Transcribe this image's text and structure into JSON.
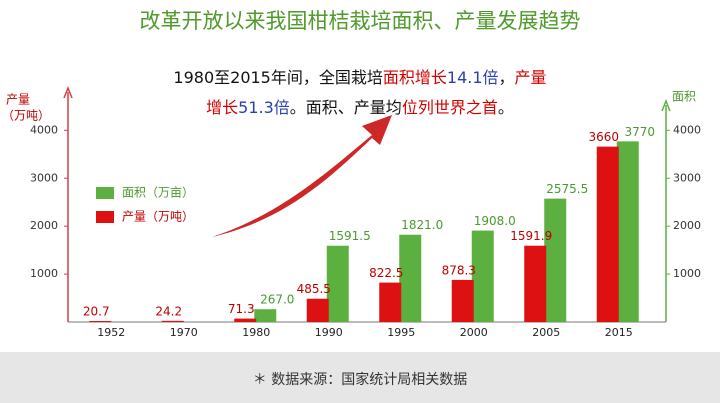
{
  "chart_data": {
    "type": "bar",
    "title": "改革开放以来我国柑桔栽培面积、产量发展趋势",
    "annotation": [
      [
        {
          "text": "1980至2015年间，全国栽培",
          "color": "#111111"
        },
        {
          "text": "面积增长",
          "color": "#d40000"
        },
        {
          "text": "14.1倍",
          "color": "#2a3fb0"
        },
        {
          "text": "，",
          "color": "#111111"
        },
        {
          "text": "产量",
          "color": "#d40000"
        }
      ],
      [
        {
          "text": "增长",
          "color": "#d40000"
        },
        {
          "text": "51.3倍",
          "color": "#2a3fb0"
        },
        {
          "text": "。面积、产量均",
          "color": "#111111"
        },
        {
          "text": "位列世界之首",
          "color": "#d40000"
        },
        {
          "text": "。",
          "color": "#111111"
        }
      ]
    ],
    "y_label": [
      "产量",
      "（万吨）"
    ],
    "y2_label": "面积",
    "source": "＊ 数据来源：国家统计局相关数据",
    "categories": [
      "1952",
      "1970",
      "1980",
      "1990",
      "1995",
      "2000",
      "2005",
      "2015"
    ],
    "series": [
      {
        "name": "面积（万亩）",
        "color": "#5cb040",
        "label_color": "#4a9a30",
        "axis": "y2",
        "values": [
          null,
          null,
          267.0,
          1591.5,
          1821.0,
          1908.0,
          2575.5,
          3770
        ],
        "value_labels": [
          null,
          null,
          "267.0",
          "1591.5",
          "1821.0",
          "1908.0",
          "2575.5",
          "3770"
        ]
      },
      {
        "name": "产量（万吨）",
        "color": "#dd1111",
        "label_color": "#c00000",
        "values": [
          20.7,
          24.2,
          71.3,
          485.5,
          822.5,
          878.3,
          1591.9,
          3660
        ]
      }
    ],
    "ylim": [
      0,
      4800
    ],
    "yticks": [
      1000,
      2000,
      3000,
      4000
    ],
    "y2lim": [
      0,
      4800
    ],
    "y2ticks": [
      1000,
      2000,
      3000,
      4000
    ]
  }
}
